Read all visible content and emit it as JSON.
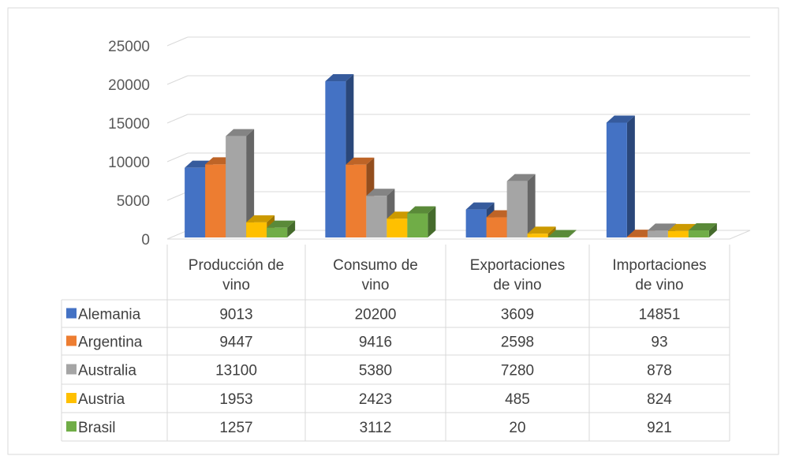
{
  "chart_data": {
    "type": "bar",
    "title": "",
    "xlabel": "",
    "ylabel": "",
    "ylim": [
      0,
      25000
    ],
    "y_ticks": [
      "0",
      "5000",
      "10000",
      "15000",
      "20000",
      "25000"
    ],
    "grid": true,
    "legend": "data-table",
    "categories": [
      [
        "Producción de",
        "vino"
      ],
      [
        "Consumo de",
        "vino"
      ],
      [
        "Exportaciones",
        "de vino"
      ],
      [
        "Importaciones",
        "de vino"
      ]
    ],
    "series": [
      {
        "name": "Alemania",
        "color": "#4472C4",
        "values": [
          9013,
          20200,
          3609,
          14851
        ]
      },
      {
        "name": "Argentina",
        "color": "#ED7D31",
        "values": [
          9447,
          9416,
          2598,
          93
        ]
      },
      {
        "name": "Australia",
        "color": "#A5A5A5",
        "values": [
          13100,
          5380,
          7280,
          878
        ]
      },
      {
        "name": "Austria",
        "color": "#FFC000",
        "values": [
          1953,
          2423,
          485,
          824
        ]
      },
      {
        "name": "Brasil",
        "color": "#70AD47",
        "values": [
          1257,
          3112,
          20,
          921
        ]
      }
    ]
  }
}
